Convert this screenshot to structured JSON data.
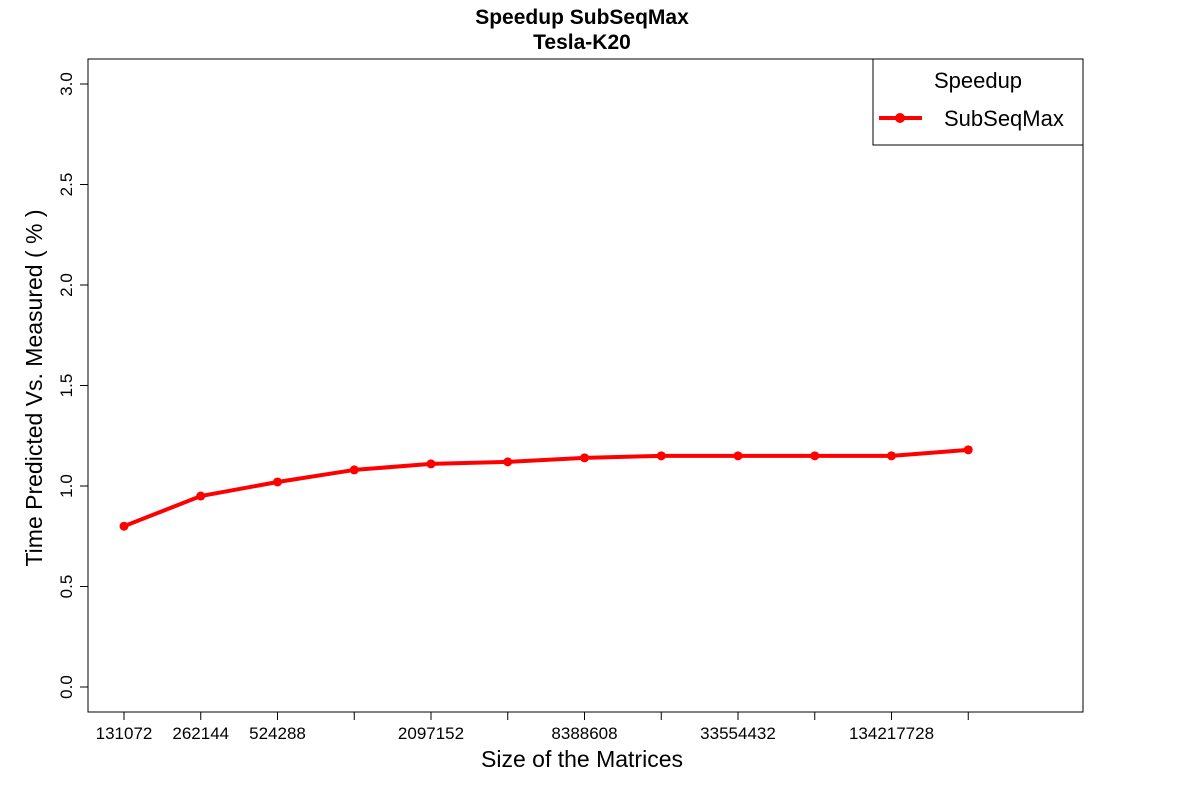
{
  "chart_data": {
    "type": "line",
    "title": "Speedup SubSeqMax",
    "subtitle": "Tesla-K20",
    "xlabel": "Size of the Matrices",
    "ylabel": "Time Predicted Vs. Measured ( % )",
    "ylim": [
      0,
      3
    ],
    "yticks": [
      "0.0",
      "0.5",
      "1.0",
      "1.5",
      "2.0",
      "2.5",
      "3.0"
    ],
    "x_tick_count": 12,
    "x_tick_labels": [
      {
        "index": 0,
        "text": "131072"
      },
      {
        "index": 1,
        "text": "262144"
      },
      {
        "index": 2,
        "text": "524288"
      },
      {
        "index": 4,
        "text": "2097152"
      },
      {
        "index": 6,
        "text": "8388608"
      },
      {
        "index": 8,
        "text": "33554432"
      },
      {
        "index": 10,
        "text": "134217728"
      }
    ],
    "legend": {
      "title": "Speedup",
      "position": "top-right"
    },
    "series": [
      {
        "name": "SubSeqMax",
        "color": "#ff0000",
        "values": [
          0.8,
          0.95,
          1.02,
          1.08,
          1.11,
          1.12,
          1.14,
          1.15,
          1.15,
          1.15,
          1.15,
          1.18
        ]
      }
    ]
  }
}
